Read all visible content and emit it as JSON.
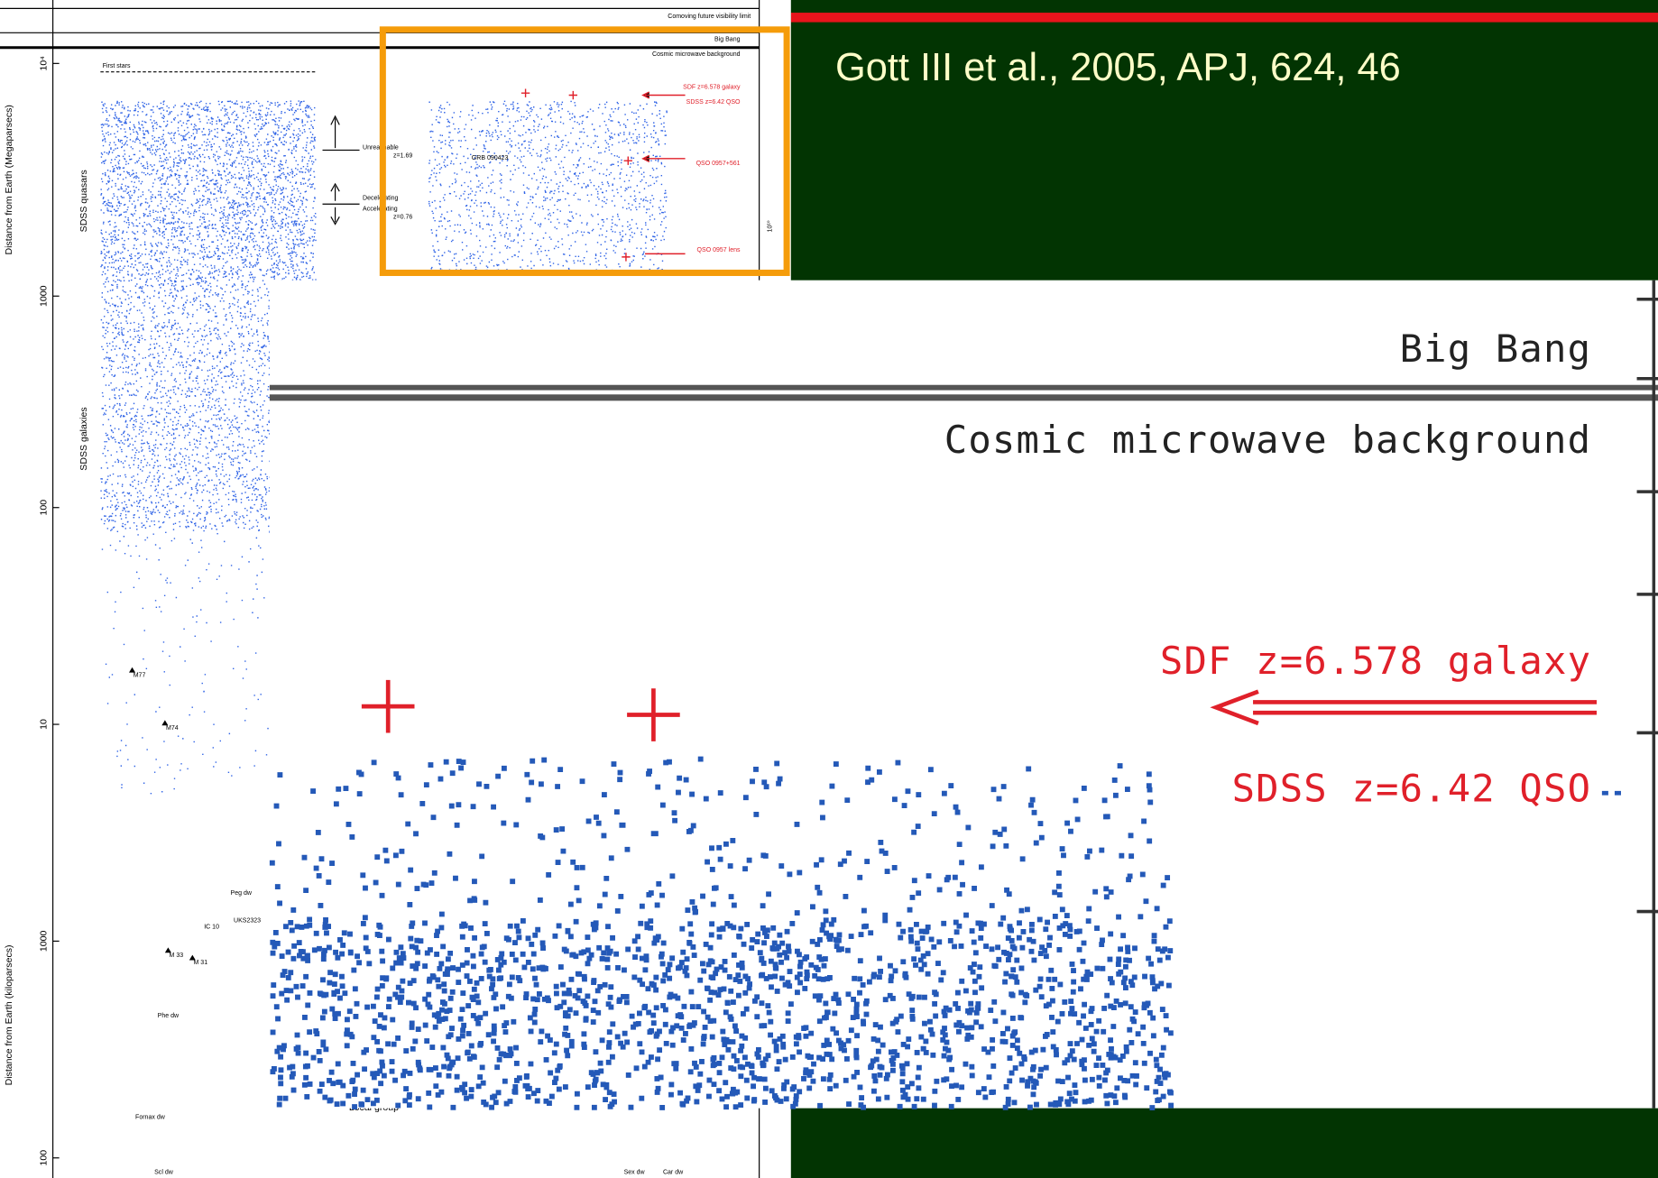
{
  "citation": "Gott III et al., 2005, APJ, 624, 46",
  "figure": {
    "visibility_limit": "Comoving future visibility limit",
    "big_bang": "Big Bang",
    "cmb": "Cosmic microwave background",
    "first_stars": "First stars",
    "sdf": "SDF z=6.578 galaxy",
    "sdss_qso": "SDSS z=6.42 QSO",
    "unreachable": "Unreachable",
    "z_unreachable": "z=1.69",
    "decelerating": "Decelerating",
    "accelerating": "Accelerating",
    "z_accelerating": "z=0.76",
    "grb": "GRB 090423",
    "qso": "QSO 0957+561",
    "qso_lens": "QSO 0957 lens",
    "quasars": "SDSS quasars",
    "galaxies": "SDSS galaxies",
    "y_mpc": "Distance from Earth (Megaparsecs)",
    "y_kpc": "Distance from Earth (kiloparsecs)",
    "left_ticks": [
      "10⁴",
      "1000",
      "100",
      "10",
      "1000",
      "100"
    ],
    "right_tick": "10¹⁰",
    "objects": [
      "M77",
      "M74",
      "Peg dw",
      "UKS2323",
      "IC 10",
      "M 33",
      "M 31",
      "Phe dw",
      "Fornax dw",
      "Scl dw",
      "Sex dw",
      "Car dw"
    ],
    "local_group": "Local group"
  },
  "inset": {
    "big_bang": "Big Bang",
    "cmb": "Cosmic microwave background",
    "sdf": "SDF z=6.578 galaxy",
    "sdss_qso": "SDSS z=6.42 QSO"
  }
}
